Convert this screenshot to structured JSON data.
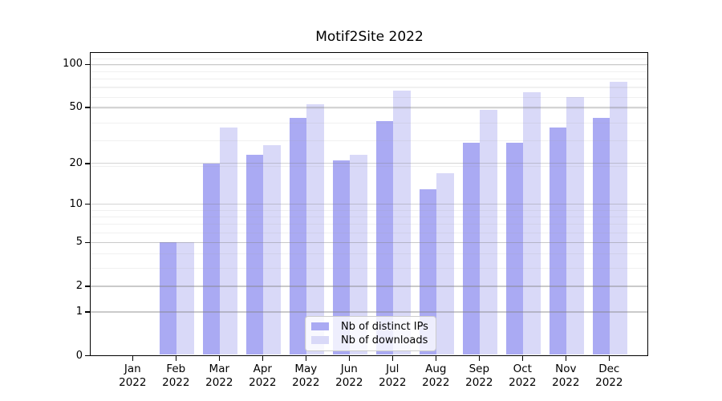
{
  "chart_data": {
    "type": "bar",
    "title": "Motif2Site 2022",
    "categories": [
      "Jan",
      "Feb",
      "Mar",
      "Apr",
      "May",
      "Jun",
      "Jul",
      "Aug",
      "Sep",
      "Oct",
      "Nov",
      "Dec"
    ],
    "year_label": "2022",
    "series": [
      {
        "name": "Nb of distinct IPs",
        "color": "#aaaaf3",
        "values": [
          0,
          5,
          20,
          23,
          42,
          21,
          40,
          13,
          28,
          28,
          36,
          42
        ]
      },
      {
        "name": "Nb of downloads",
        "color": "#d9d9f8",
        "values": [
          0,
          5,
          36,
          27,
          53,
          23,
          66,
          17,
          48,
          64,
          59,
          76
        ]
      }
    ],
    "yticks": [
      0,
      1,
      2,
      5,
      10,
      20,
      50,
      100
    ],
    "yscale": "log1p",
    "ylim": [
      0,
      120
    ],
    "xlabel": "",
    "ylabel": "",
    "grid": "horizontal major+minor",
    "legend_position": "lower center"
  },
  "colors": {
    "background": "#ffffff",
    "axis": "#000000",
    "bar_dark": "#aaaaf3",
    "bar_light": "#d9d9f8"
  }
}
